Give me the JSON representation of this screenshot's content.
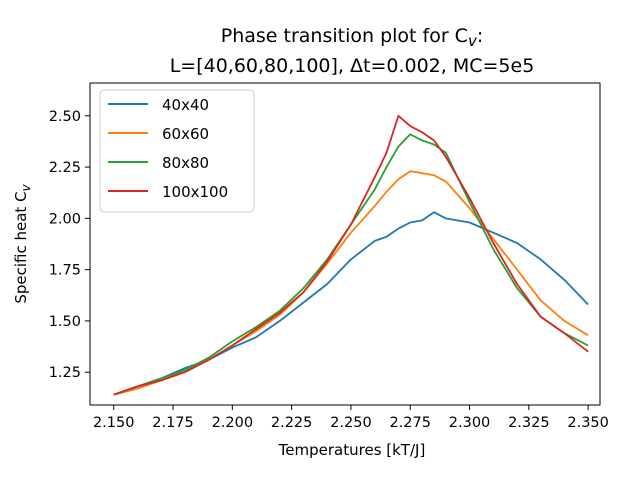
{
  "chart_data": {
    "type": "line",
    "title_line1": "Phase transition plot for C",
    "title_sub": "v",
    "title_suffix": ":",
    "title_line2": "L=[40,60,80,100], Δt=0.002, MC=5e5",
    "xlabel": "Temperatures [kT/J]",
    "ylabel": "Specific heat C",
    "ylabel_sub": "v",
    "xlim": [
      2.14,
      2.355
    ],
    "ylim": [
      1.09,
      2.66
    ],
    "xticks": [
      "2.150",
      "2.175",
      "2.200",
      "2.225",
      "2.250",
      "2.275",
      "2.300",
      "2.325",
      "2.350"
    ],
    "xtick_values": [
      2.15,
      2.175,
      2.2,
      2.225,
      2.25,
      2.275,
      2.3,
      2.325,
      2.35
    ],
    "yticks": [
      "1.25",
      "1.50",
      "1.75",
      "2.00",
      "2.25",
      "2.50"
    ],
    "ytick_values": [
      1.25,
      1.5,
      1.75,
      2.0,
      2.25,
      2.5
    ],
    "grid": false,
    "legend_position": "upper-left",
    "x": [
      2.15,
      2.16,
      2.17,
      2.18,
      2.19,
      2.2,
      2.21,
      2.22,
      2.23,
      2.24,
      2.25,
      2.26,
      2.265,
      2.27,
      2.275,
      2.28,
      2.285,
      2.29,
      2.3,
      2.31,
      2.32,
      2.33,
      2.34,
      2.35
    ],
    "series": [
      {
        "name": "40x40",
        "color": "#1f77b4",
        "values": [
          1.14,
          1.18,
          1.22,
          1.27,
          1.31,
          1.37,
          1.42,
          1.5,
          1.59,
          1.68,
          1.8,
          1.89,
          1.91,
          1.95,
          1.98,
          1.99,
          2.03,
          2.0,
          1.98,
          1.93,
          1.88,
          1.8,
          1.7,
          1.58
        ]
      },
      {
        "name": "60x60",
        "color": "#ff7f0e",
        "values": [
          1.14,
          1.17,
          1.21,
          1.26,
          1.31,
          1.38,
          1.45,
          1.53,
          1.64,
          1.78,
          1.93,
          2.06,
          2.13,
          2.19,
          2.23,
          2.22,
          2.21,
          2.18,
          2.05,
          1.9,
          1.75,
          1.6,
          1.5,
          1.43
        ]
      },
      {
        "name": "80x80",
        "color": "#2ca02c",
        "values": [
          1.14,
          1.18,
          1.22,
          1.26,
          1.32,
          1.4,
          1.47,
          1.55,
          1.66,
          1.8,
          1.97,
          2.14,
          2.25,
          2.35,
          2.41,
          2.38,
          2.36,
          2.32,
          2.08,
          1.85,
          1.66,
          1.52,
          1.44,
          1.38
        ]
      },
      {
        "name": "100x100",
        "color": "#d62728",
        "values": [
          1.14,
          1.18,
          1.21,
          1.25,
          1.31,
          1.38,
          1.46,
          1.54,
          1.64,
          1.79,
          1.97,
          2.2,
          2.32,
          2.5,
          2.45,
          2.42,
          2.38,
          2.3,
          2.1,
          1.88,
          1.68,
          1.52,
          1.44,
          1.35
        ]
      }
    ]
  }
}
